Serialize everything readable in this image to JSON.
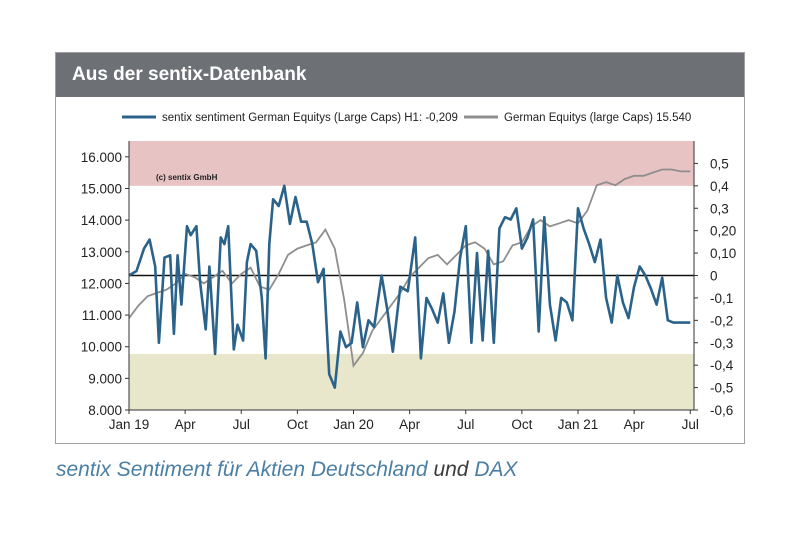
{
  "panel": {
    "title": "Aus der sentix-Datenbank"
  },
  "caption": {
    "part1": "sentix Sentiment für Aktien Deutschland",
    "part2": "und",
    "part3": "DAX"
  },
  "chart_data": {
    "type": "line",
    "watermark": "(c) sentix GmbH",
    "x_labels": [
      "Jan 19",
      "Apr",
      "Jul",
      "Oct",
      "Jan 20",
      "Apr",
      "Jul",
      "Oct",
      "Jan 21",
      "Apr",
      "Jul"
    ],
    "x_range": [
      0,
      30.2
    ],
    "left_axis": {
      "ticks": [
        "16.000",
        "15.000",
        "14.000",
        "13.000",
        "12.000",
        "11.000",
        "10.000",
        "9.000",
        "8.000"
      ],
      "range": [
        8000,
        16500
      ]
    },
    "right_axis": {
      "ticks": [
        "0,5",
        "0,4",
        "0,3",
        "0,20",
        "0,10",
        "0",
        "-0,1",
        "-0,2",
        "-0,3",
        "-0,4",
        "-0,5",
        "-0,6"
      ],
      "range": [
        -0.6,
        0.6
      ]
    },
    "bands": {
      "upper": [
        0.4,
        0.6
      ],
      "lower": [
        -0.6,
        -0.35
      ]
    },
    "colors": {
      "sentiment": "#2a6289",
      "dax": "#8e8e8e",
      "upper_band": "#e8c3c4",
      "lower_band": "#e8e7cb",
      "zero_line": "#111111"
    },
    "series": [
      {
        "name": "sentix sentiment German Equitys (Large Caps) H1: -0,209",
        "axis": "right",
        "x": [
          0,
          0.4,
          0.8,
          1.1,
          1.4,
          1.6,
          1.9,
          2.2,
          2.4,
          2.6,
          2.8,
          3.1,
          3.3,
          3.6,
          3.8,
          4.1,
          4.3,
          4.6,
          4.9,
          5.1,
          5.3,
          5.6,
          5.8,
          6.1,
          6.3,
          6.5,
          6.8,
          7.1,
          7.3,
          7.5,
          7.7,
          8.0,
          8.3,
          8.6,
          8.9,
          9.2,
          9.5,
          9.8,
          10.1,
          10.4,
          10.7,
          11.0,
          11.3,
          11.6,
          11.9,
          12.2,
          12.5,
          12.8,
          13.1,
          13.5,
          13.8,
          14.1,
          14.5,
          14.9,
          15.3,
          15.6,
          15.9,
          16.2,
          16.5,
          16.8,
          17.1,
          17.4,
          17.7,
          18.0,
          18.3,
          18.6,
          18.9,
          19.2,
          19.5,
          19.8,
          20.1,
          20.4,
          20.7,
          21.0,
          21.3,
          21.6,
          21.9,
          22.2,
          22.5,
          22.8,
          23.1,
          23.4,
          23.7,
          24.0,
          24.3,
          24.6,
          24.9,
          25.2,
          25.5,
          25.8,
          26.1,
          26.4,
          26.7,
          27.0,
          27.3,
          27.6,
          27.9,
          28.2,
          28.5,
          28.8,
          29.1,
          29.4,
          29.7,
          30.0
        ],
        "y": [
          0.0,
          0.02,
          0.12,
          0.16,
          0.04,
          -0.3,
          0.08,
          0.09,
          -0.26,
          0.09,
          -0.13,
          0.22,
          0.18,
          0.22,
          -0.03,
          -0.24,
          0.04,
          -0.35,
          0.17,
          0.14,
          0.22,
          -0.33,
          -0.22,
          -0.29,
          0.06,
          0.14,
          0.11,
          -0.1,
          -0.37,
          0.14,
          0.34,
          0.31,
          0.4,
          0.23,
          0.35,
          0.24,
          0.24,
          0.14,
          -0.03,
          0.03,
          -0.44,
          -0.5,
          -0.25,
          -0.32,
          -0.3,
          -0.12,
          -0.32,
          -0.2,
          -0.23,
          0.0,
          -0.15,
          -0.34,
          -0.05,
          -0.07,
          0.17,
          -0.37,
          -0.1,
          -0.15,
          -0.21,
          -0.08,
          -0.3,
          -0.16,
          0.08,
          0.22,
          -0.3,
          0.1,
          -0.29,
          0.11,
          -0.3,
          0.21,
          0.26,
          0.25,
          0.3,
          0.12,
          0.17,
          0.25,
          -0.25,
          0.26,
          -0.13,
          -0.29,
          -0.1,
          -0.12,
          -0.2,
          0.3,
          0.21,
          0.14,
          0.06,
          0.16,
          -0.1,
          -0.21,
          0.0,
          -0.12,
          -0.19,
          -0.05,
          0.04,
          0.0,
          -0.06,
          -0.13,
          -0.01,
          -0.2,
          -0.21,
          -0.21,
          -0.21,
          -0.21
        ]
      },
      {
        "name": "German Equitys (large Caps) 15.540",
        "axis": "left",
        "x": [
          0,
          0.5,
          1.0,
          1.5,
          2.0,
          2.5,
          3.0,
          3.5,
          4.0,
          4.5,
          5.0,
          5.5,
          6.0,
          6.5,
          7.0,
          7.5,
          8.0,
          8.5,
          9.0,
          9.5,
          10.0,
          10.5,
          11.0,
          11.5,
          12.0,
          12.5,
          13.0,
          13.5,
          14.0,
          14.5,
          15.0,
          15.5,
          16.0,
          16.5,
          17.0,
          17.5,
          18.0,
          18.5,
          19.0,
          19.5,
          20.0,
          20.5,
          21.0,
          21.5,
          22.0,
          22.5,
          23.0,
          23.5,
          24.0,
          24.5,
          25.0,
          25.5,
          26.0,
          26.5,
          27.0,
          27.5,
          28.0,
          28.5,
          29.0,
          29.5,
          30.0
        ],
        "y": [
          10900,
          11300,
          11600,
          11700,
          11800,
          12000,
          12300,
          12200,
          12000,
          12200,
          12400,
          12000,
          12300,
          12500,
          11900,
          11800,
          12300,
          12900,
          13100,
          13200,
          13300,
          13700,
          13100,
          11500,
          9400,
          9800,
          10500,
          10900,
          11300,
          11700,
          12200,
          12500,
          12800,
          12900,
          12600,
          12900,
          13200,
          13300,
          13100,
          12600,
          12700,
          13200,
          13300,
          13800,
          14000,
          13800,
          13900,
          14000,
          13900,
          14300,
          15100,
          15200,
          15100,
          15300,
          15400,
          15400,
          15500,
          15600,
          15600,
          15540,
          15540
        ]
      }
    ]
  }
}
